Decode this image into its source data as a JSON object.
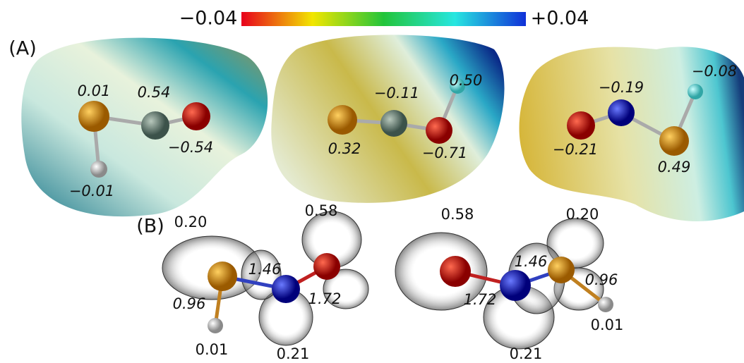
{
  "colorbar": {
    "min": "−0.04",
    "max": "+0.04"
  },
  "panel_a": {
    "label": "(A)",
    "molecules": [
      {
        "labels": [
          "0.01",
          "0.54",
          "−0.54",
          "−0.01"
        ]
      },
      {
        "labels": [
          "−0.11",
          "0.50",
          "0.32",
          "−0.71"
        ]
      },
      {
        "labels": [
          "−0.19",
          "−0.08",
          "−0.21",
          "0.49"
        ]
      }
    ]
  },
  "panel_b": {
    "label": "(B)",
    "molecules": [
      {
        "charges": [
          "0.20",
          "0.58",
          "0.21",
          "0.01"
        ],
        "bonds": [
          "1.46",
          "1.72",
          "0.96"
        ]
      },
      {
        "charges": [
          "0.58",
          "0.20",
          "0.21",
          "0.01"
        ],
        "bonds": [
          "1.46",
          "1.72",
          "0.96"
        ]
      }
    ]
  }
}
